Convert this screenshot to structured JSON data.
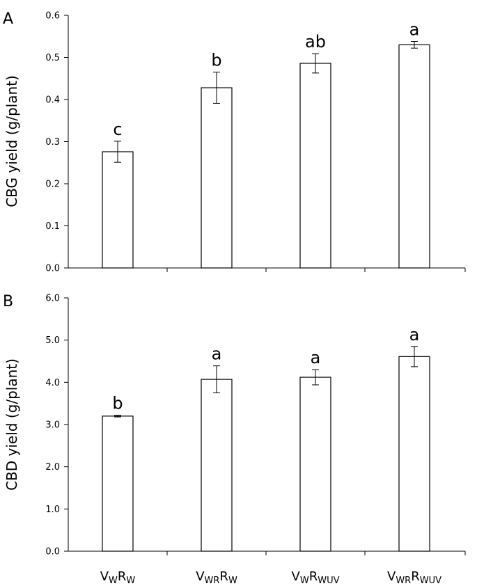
{
  "chart_data": [
    {
      "panel_label": "A",
      "type": "bar",
      "ylabel": "CBG yield (g/plant)",
      "ylim": [
        0,
        0.6
      ],
      "yticks": [
        "0.0",
        "0.1",
        "0.2",
        "0.3",
        "0.4",
        "0.5",
        "0.6"
      ],
      "categories": [
        {
          "main": "V",
          "sub1": "W",
          "mid": "R",
          "sub2": "W"
        },
        {
          "main": "V",
          "sub1": "WR",
          "mid": "R",
          "sub2": "W"
        },
        {
          "main": "V",
          "sub1": "W",
          "mid": "R",
          "sub2": "WUV"
        },
        {
          "main": "V",
          "sub1": "WR",
          "mid": "R",
          "sub2": "WUV"
        }
      ],
      "values": [
        0.276,
        0.428,
        0.486,
        0.53
      ],
      "errors": [
        0.025,
        0.037,
        0.023,
        0.008
      ],
      "significance": [
        "c",
        "b",
        "ab",
        "a"
      ],
      "grid": false,
      "bar_fill": "#ffffff",
      "bar_stroke": "#000000"
    },
    {
      "panel_label": "B",
      "type": "bar",
      "ylabel": "CBD yield (g/plant)",
      "ylim": [
        0,
        6.0
      ],
      "yticks": [
        "0.0",
        "1.0",
        "2.0",
        "3.0",
        "4.0",
        "5.0",
        "6.0"
      ],
      "categories": [
        {
          "main": "V",
          "sub1": "W",
          "mid": "R",
          "sub2": "W"
        },
        {
          "main": "V",
          "sub1": "WR",
          "mid": "R",
          "sub2": "W"
        },
        {
          "main": "V",
          "sub1": "W",
          "mid": "R",
          "sub2": "WUV"
        },
        {
          "main": "V",
          "sub1": "WR",
          "mid": "R",
          "sub2": "WUV"
        }
      ],
      "values": [
        3.2,
        4.07,
        4.12,
        4.61
      ],
      "errors": [
        0.02,
        0.32,
        0.18,
        0.24
      ],
      "significance": [
        "b",
        "a",
        "a",
        "a"
      ],
      "grid": false,
      "bar_fill": "#ffffff",
      "bar_stroke": "#000000"
    }
  ],
  "x_category_labels": [
    {
      "main": "V",
      "sub1": "W",
      "mid": "R",
      "sub2": "W"
    },
    {
      "main": "V",
      "sub1": "WR",
      "mid": "R",
      "sub2": "W"
    },
    {
      "main": "V",
      "sub1": "W",
      "mid": "R",
      "sub2": "WUV"
    },
    {
      "main": "V",
      "sub1": "WR",
      "mid": "R",
      "sub2": "WUV"
    }
  ]
}
